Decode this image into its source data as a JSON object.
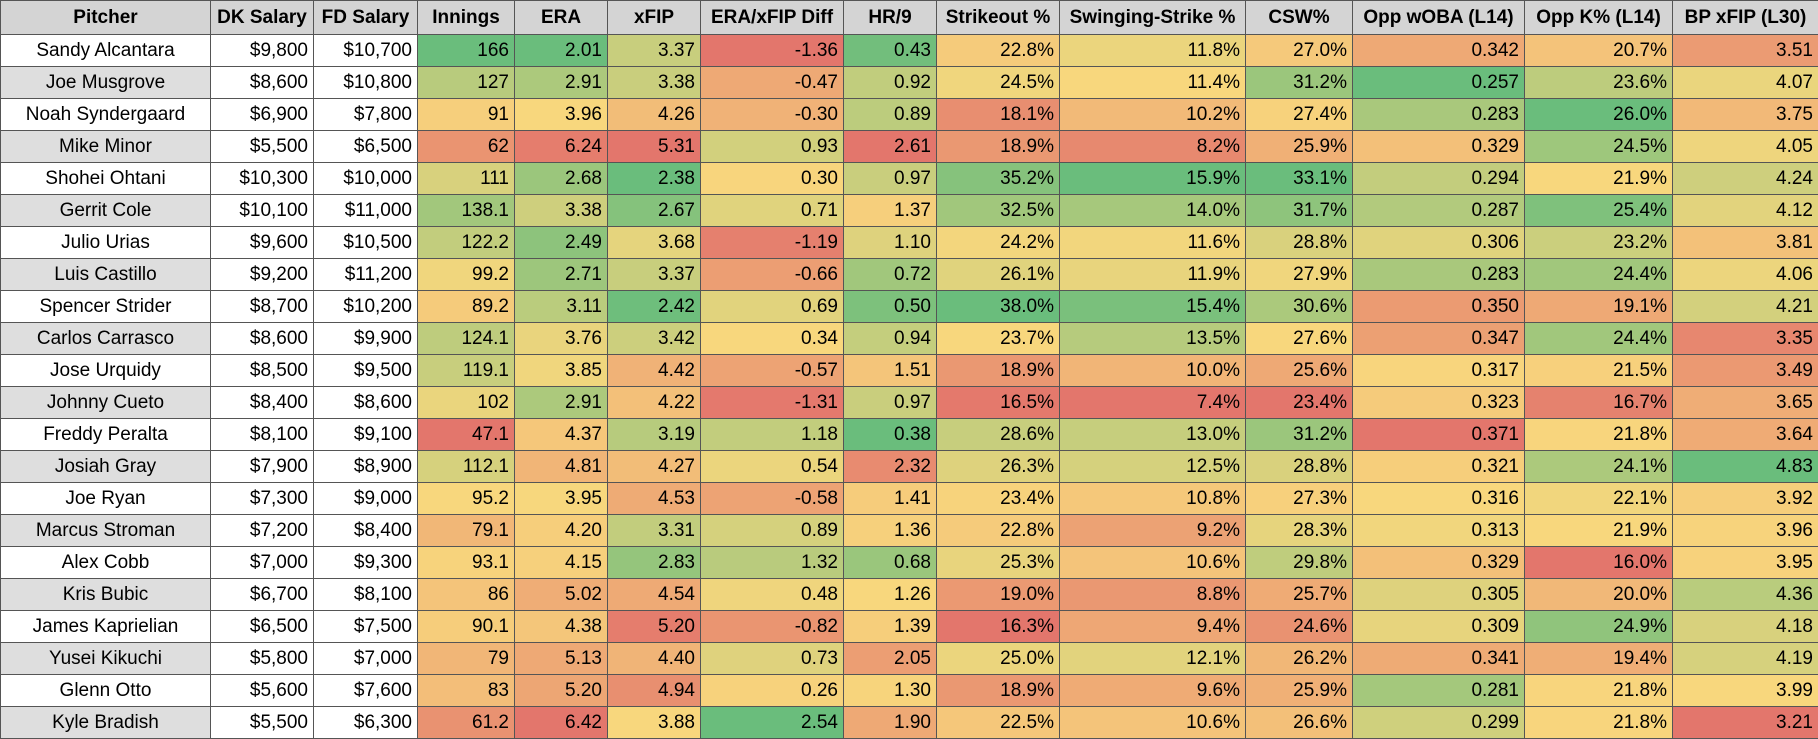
{
  "headers": [
    "Pitcher",
    "DK Salary",
    "FD Salary",
    "Innings",
    "ERA",
    "xFIP",
    "ERA/xFIP Diff",
    "HR/9",
    "Strikeout %",
    "Swinging-Strike %",
    "CSW%",
    "Opp wOBA (L14)",
    "Opp K% (L14)",
    "BP xFIP (L30)"
  ],
  "rows": [
    [
      "Sandy Alcantara",
      "$9,800",
      "$10,700",
      "166",
      "2.01",
      "3.37",
      "-1.36",
      "0.43",
      "22.8%",
      "11.8%",
      "27.0%",
      "0.342",
      "20.7%",
      "3.51"
    ],
    [
      "Joe Musgrove",
      "$8,600",
      "$10,800",
      "127",
      "2.91",
      "3.38",
      "-0.47",
      "0.92",
      "24.5%",
      "11.4%",
      "31.2%",
      "0.257",
      "23.6%",
      "4.07"
    ],
    [
      "Noah Syndergaard",
      "$6,900",
      "$7,800",
      "91",
      "3.96",
      "4.26",
      "-0.30",
      "0.89",
      "18.1%",
      "10.2%",
      "27.4%",
      "0.283",
      "26.0%",
      "3.75"
    ],
    [
      "Mike Minor",
      "$5,500",
      "$6,500",
      "62",
      "6.24",
      "5.31",
      "0.93",
      "2.61",
      "18.9%",
      "8.2%",
      "25.9%",
      "0.329",
      "24.5%",
      "4.05"
    ],
    [
      "Shohei Ohtani",
      "$10,300",
      "$10,000",
      "111",
      "2.68",
      "2.38",
      "0.30",
      "0.97",
      "35.2%",
      "15.9%",
      "33.1%",
      "0.294",
      "21.9%",
      "4.24"
    ],
    [
      "Gerrit Cole",
      "$10,100",
      "$11,000",
      "138.1",
      "3.38",
      "2.67",
      "0.71",
      "1.37",
      "32.5%",
      "14.0%",
      "31.7%",
      "0.287",
      "25.4%",
      "4.12"
    ],
    [
      "Julio Urias",
      "$9,600",
      "$10,500",
      "122.2",
      "2.49",
      "3.68",
      "-1.19",
      "1.10",
      "24.2%",
      "11.6%",
      "28.8%",
      "0.306",
      "23.2%",
      "3.81"
    ],
    [
      "Luis Castillo",
      "$9,200",
      "$11,200",
      "99.2",
      "2.71",
      "3.37",
      "-0.66",
      "0.72",
      "26.1%",
      "11.9%",
      "27.9%",
      "0.283",
      "24.4%",
      "4.06"
    ],
    [
      "Spencer Strider",
      "$8,700",
      "$10,200",
      "89.2",
      "3.11",
      "2.42",
      "0.69",
      "0.50",
      "38.0%",
      "15.4%",
      "30.6%",
      "0.350",
      "19.1%",
      "4.21"
    ],
    [
      "Carlos Carrasco",
      "$8,600",
      "$9,900",
      "124.1",
      "3.76",
      "3.42",
      "0.34",
      "0.94",
      "23.7%",
      "13.5%",
      "27.6%",
      "0.347",
      "24.4%",
      "3.35"
    ],
    [
      "Jose Urquidy",
      "$8,500",
      "$9,500",
      "119.1",
      "3.85",
      "4.42",
      "-0.57",
      "1.51",
      "18.9%",
      "10.0%",
      "25.6%",
      "0.317",
      "21.5%",
      "3.49"
    ],
    [
      "Johnny Cueto",
      "$8,400",
      "$8,600",
      "102",
      "2.91",
      "4.22",
      "-1.31",
      "0.97",
      "16.5%",
      "7.4%",
      "23.4%",
      "0.323",
      "16.7%",
      "3.65"
    ],
    [
      "Freddy Peralta",
      "$8,100",
      "$9,100",
      "47.1",
      "4.37",
      "3.19",
      "1.18",
      "0.38",
      "28.6%",
      "13.0%",
      "31.2%",
      "0.371",
      "21.8%",
      "3.64"
    ],
    [
      "Josiah Gray",
      "$7,900",
      "$8,900",
      "112.1",
      "4.81",
      "4.27",
      "0.54",
      "2.32",
      "26.3%",
      "12.5%",
      "28.8%",
      "0.321",
      "24.1%",
      "4.83"
    ],
    [
      "Joe Ryan",
      "$7,300",
      "$9,000",
      "95.2",
      "3.95",
      "4.53",
      "-0.58",
      "1.41",
      "23.4%",
      "10.8%",
      "27.3%",
      "0.316",
      "22.1%",
      "3.92"
    ],
    [
      "Marcus Stroman",
      "$7,200",
      "$8,400",
      "79.1",
      "4.20",
      "3.31",
      "0.89",
      "1.36",
      "22.8%",
      "9.2%",
      "28.3%",
      "0.313",
      "21.9%",
      "3.96"
    ],
    [
      "Alex Cobb",
      "$7,000",
      "$9,300",
      "93.1",
      "4.15",
      "2.83",
      "1.32",
      "0.68",
      "25.3%",
      "10.6%",
      "29.8%",
      "0.329",
      "16.0%",
      "3.95"
    ],
    [
      "Kris Bubic",
      "$6,700",
      "$8,100",
      "86",
      "5.02",
      "4.54",
      "0.48",
      "1.26",
      "19.0%",
      "8.8%",
      "25.7%",
      "0.305",
      "20.0%",
      "4.36"
    ],
    [
      "James Kaprielian",
      "$6,500",
      "$7,500",
      "90.1",
      "4.38",
      "5.20",
      "-0.82",
      "1.39",
      "16.3%",
      "9.4%",
      "24.6%",
      "0.309",
      "24.9%",
      "4.18"
    ],
    [
      "Yusei Kikuchi",
      "$5,800",
      "$7,000",
      "79",
      "5.13",
      "4.40",
      "0.73",
      "2.05",
      "25.0%",
      "12.1%",
      "26.2%",
      "0.341",
      "19.4%",
      "4.19"
    ],
    [
      "Glenn Otto",
      "$5,600",
      "$7,600",
      "83",
      "5.20",
      "4.94",
      "0.26",
      "1.30",
      "18.9%",
      "9.6%",
      "25.9%",
      "0.281",
      "21.8%",
      "3.99"
    ],
    [
      "Kyle Bradish",
      "$5,500",
      "$6,300",
      "61.2",
      "6.42",
      "3.88",
      "2.54",
      "1.90",
      "22.5%",
      "10.6%",
      "26.6%",
      "0.299",
      "21.8%",
      "3.21"
    ]
  ],
  "colors": {
    "best": "#6abd7c",
    "mid": "#f8d77d",
    "worst": "#e3766c"
  },
  "column_scales": [
    null,
    null,
    null,
    {
      "dir": "high"
    },
    {
      "dir": "low"
    },
    {
      "dir": "low"
    },
    {
      "dir": "high"
    },
    {
      "dir": "low"
    },
    {
      "dir": "high"
    },
    {
      "dir": "high"
    },
    {
      "dir": "high"
    },
    {
      "dir": "low"
    },
    {
      "dir": "high"
    },
    {
      "dir": "high"
    }
  ]
}
